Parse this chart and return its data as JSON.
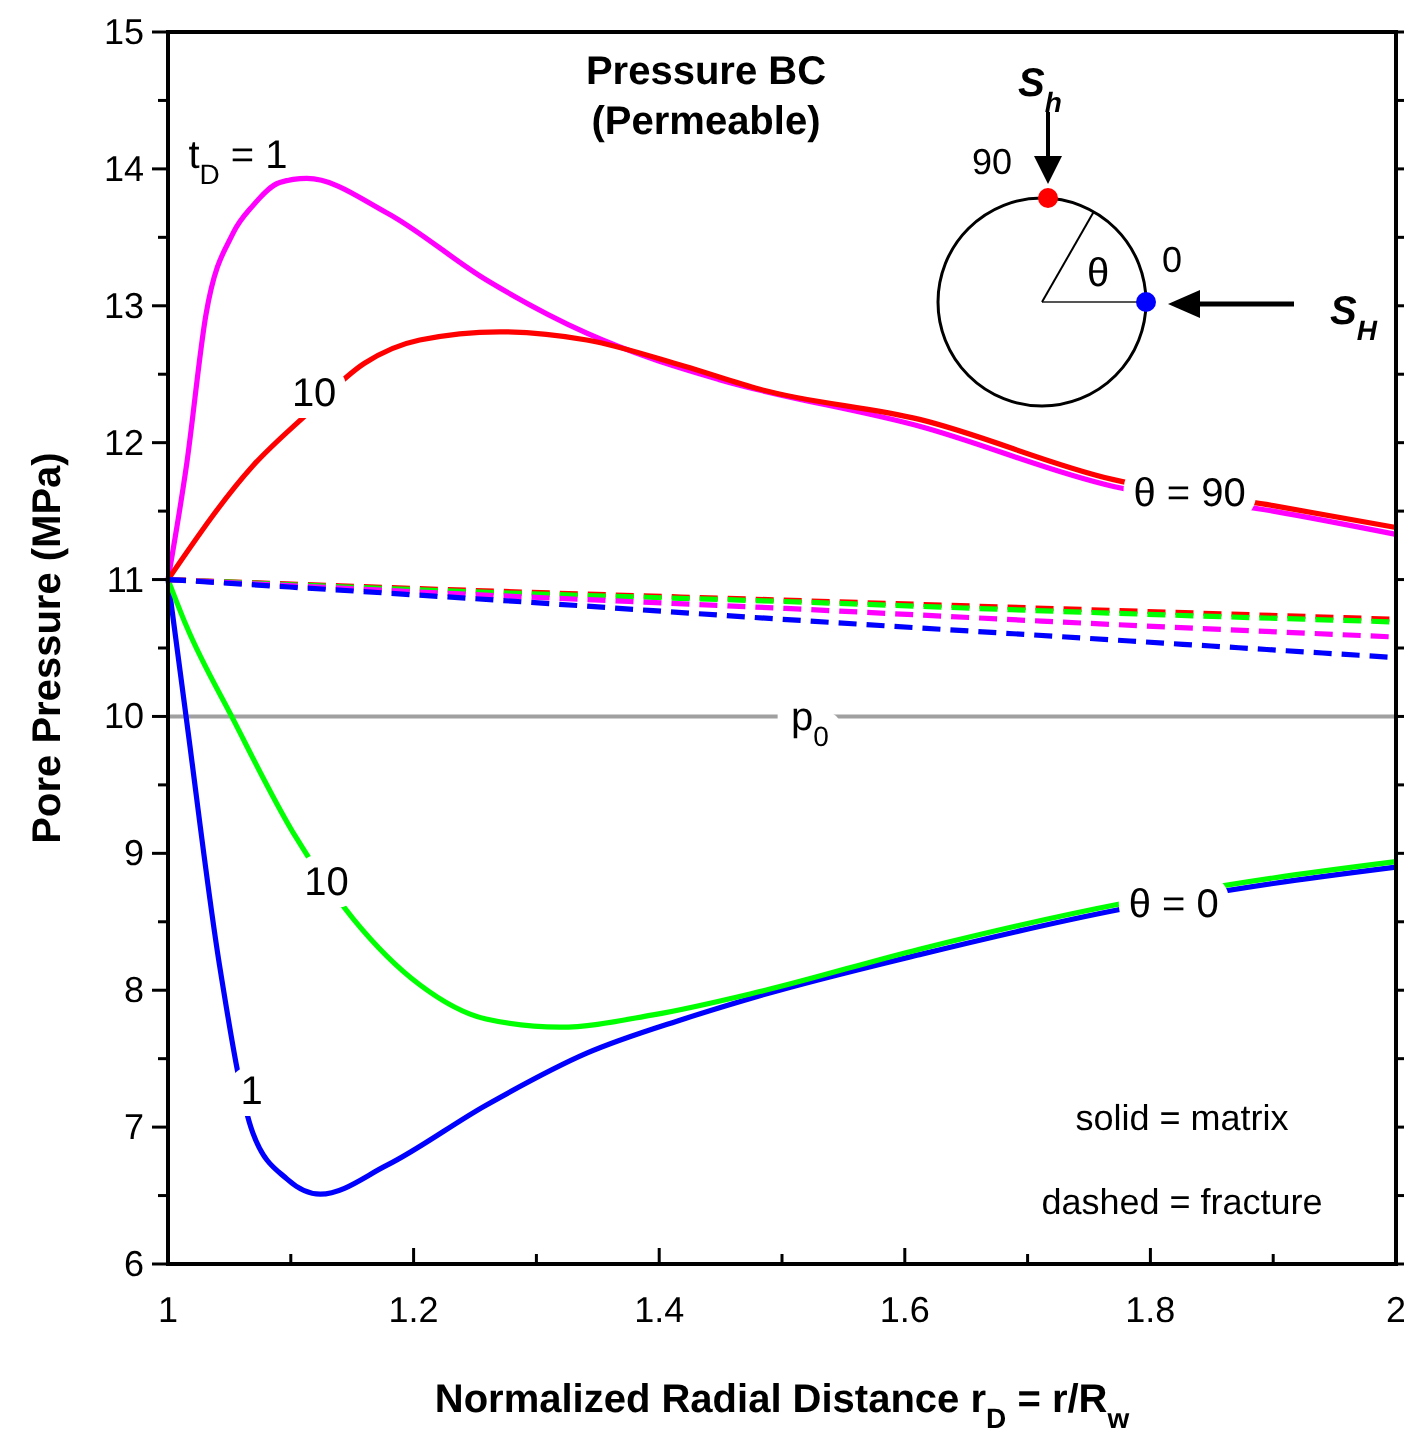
{
  "chart_data": {
    "type": "line",
    "title": "Pressure BC",
    "subtitle": "(Permeable)",
    "xlabel": "Normalized Radial Distance r$_{D}$ = r/R$_{w}$",
    "ylabel": "Pore Pressure (MPa)",
    "xlim": [
      1,
      2
    ],
    "ylim": [
      6,
      15
    ],
    "xticks": [
      1,
      {
        "value": 1.1,
        "label": null
      },
      1.2,
      {
        "value": 1.3,
        "label": null
      },
      1.4,
      {
        "value": 1.5,
        "label": null
      },
      1.6,
      {
        "value": 1.7,
        "label": null
      },
      1.8,
      {
        "value": 1.9,
        "label": null
      },
      2
    ],
    "yticks": [
      6,
      {
        "value": 6.5,
        "label": null
      },
      7,
      {
        "value": 7.5,
        "label": null
      },
      8,
      {
        "value": 8.5,
        "label": null
      },
      9,
      {
        "value": 9.5,
        "label": null
      },
      10,
      {
        "value": 10.5,
        "label": null
      },
      11,
      {
        "value": 11.5,
        "label": null
      },
      12,
      {
        "value": 12.5,
        "label": null
      },
      13,
      {
        "value": 13.5,
        "label": null
      },
      14,
      {
        "value": 14.5,
        "label": null
      },
      15
    ],
    "grid": false,
    "series": [
      {
        "color": "#ff00ff",
        "line_style": "solid",
        "x": [
          1,
          1.015,
          1.031,
          1.053,
          1.069,
          1.091,
          1.113,
          1.178,
          1.259,
          1.341,
          1.395,
          1.449,
          1.612,
          1.77,
          1.9,
          2
        ],
        "values": [
          11,
          11.83,
          12.94,
          13.53,
          13.73,
          13.9,
          13.93,
          13.68,
          13.19,
          12.8,
          12.61,
          12.46,
          12.12,
          11.68,
          11.5,
          11.33
        ]
      },
      {
        "color": "#ff0000",
        "line_style": "solid",
        "x": [
          1,
          1.069,
          1.112,
          1.16,
          1.205,
          1.27,
          1.341,
          1.42,
          1.482,
          1.612,
          1.77,
          1.9,
          2
        ],
        "values": [
          11,
          11.83,
          12.2,
          12.58,
          12.75,
          12.81,
          12.75,
          12.56,
          12.39,
          12.17,
          11.73,
          11.54,
          11.38
        ]
      },
      {
        "color": "#0000ff",
        "line_style": "solid",
        "x": [
          1,
          1.015,
          1.042,
          1.069,
          1.097,
          1.124,
          1.178,
          1.259,
          1.341,
          1.42,
          1.482,
          1.612,
          1.775,
          1.9,
          2
        ],
        "values": [
          11,
          9.98,
          8.18,
          6.96,
          6.62,
          6.51,
          6.72,
          7.16,
          7.54,
          7.79,
          7.96,
          8.26,
          8.59,
          8.78,
          8.9
        ]
      },
      {
        "color": "#00ff00",
        "line_style": "solid",
        "x": [
          1,
          1.015,
          1.053,
          1.102,
          1.151,
          1.205,
          1.259,
          1.319,
          1.395,
          1.482,
          1.612,
          1.775,
          1.9,
          2
        ],
        "values": [
          11,
          10.66,
          9.98,
          9.15,
          8.52,
          8.04,
          7.79,
          7.73,
          7.82,
          7.99,
          8.3,
          8.63,
          8.82,
          8.94
        ]
      },
      {
        "color": "#ff0000",
        "line_style": "dashed",
        "x": [
          1,
          1.25,
          1.5,
          1.75,
          2
        ],
        "values": [
          11,
          10.92,
          10.85,
          10.78,
          10.71
        ]
      },
      {
        "color": "#00ff00",
        "line_style": "dashed",
        "x": [
          1,
          1.25,
          1.5,
          1.75,
          2
        ],
        "values": [
          11,
          10.91,
          10.84,
          10.76,
          10.69
        ]
      },
      {
        "color": "#ff00ff",
        "line_style": "dashed",
        "x": [
          1,
          1.25,
          1.5,
          1.75,
          2
        ],
        "values": [
          11,
          10.89,
          10.79,
          10.68,
          10.58
        ]
      },
      {
        "color": "#0000ff",
        "line_style": "dashed",
        "x": [
          1,
          1.25,
          1.5,
          1.75,
          2
        ],
        "values": [
          11,
          10.86,
          10.71,
          10.57,
          10.43
        ]
      }
    ],
    "ref_lines": [
      {
        "axis": "y",
        "value": 10,
        "label": "p$_{0}$",
        "color": "#a0a0a0"
      }
    ],
    "annotations": [
      "t$_{D}$ = 1",
      {
        "text": "10",
        "x": 1.119,
        "y": 12.37
      },
      {
        "text": "10",
        "x": 1.129,
        "y": 8.8
      },
      {
        "text": "1",
        "x": 1.068,
        "y": 7.27
      },
      {
        "text": "θ = 90",
        "x": 1.832,
        "y": 11.64
      },
      {
        "text": "θ = 0",
        "x": 1.819,
        "y": 8.64
      },
      "S$_{h}$",
      "90",
      "θ",
      "0",
      "S$_{H}$",
      "solid = matrix",
      "dashed = fracture"
    ]
  }
}
